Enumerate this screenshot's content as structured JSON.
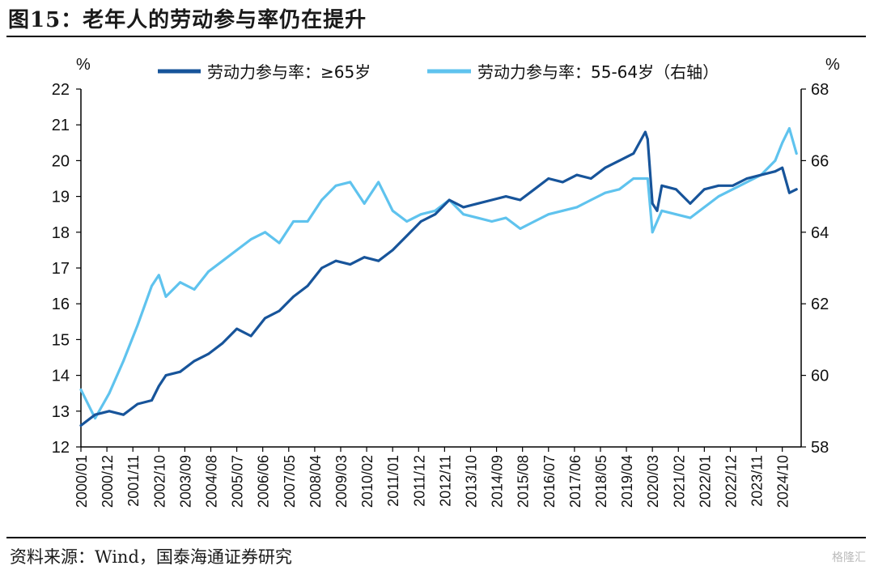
{
  "figure": {
    "title": "图15：老年人的劳动参与率仍在提升",
    "source": "资料来源：Wind，国泰海通证券研究",
    "watermark": "格隆汇"
  },
  "colors": {
    "series_65plus": "#17549a",
    "series_55_64": "#5fc3ee",
    "axis": "#000000"
  },
  "chart_data": {
    "type": "line",
    "title": "",
    "left_axis": {
      "unit": "%",
      "ylim": [
        12,
        22
      ],
      "ticks": [
        "12",
        "13",
        "14",
        "15",
        "16",
        "17",
        "18",
        "19",
        "20",
        "21",
        "22"
      ]
    },
    "right_axis": {
      "unit": "%",
      "ylim": [
        58,
        68
      ],
      "ticks": [
        "58",
        "60",
        "62",
        "64",
        "66",
        "68"
      ]
    },
    "x_ticks": [
      "2000/01",
      "2000/12",
      "2001/11",
      "2002/10",
      "2003/09",
      "2004/08",
      "2005/07",
      "2006/06",
      "2007/05",
      "2008/04",
      "2009/03",
      "2010/02",
      "2011/01",
      "2011/12",
      "2012/11",
      "2013/10",
      "2014/09",
      "2015/08",
      "2016/07",
      "2017/06",
      "2018/05",
      "2019/04",
      "2020/03",
      "2021/02",
      "2022/01",
      "2022/12",
      "2023/11",
      "2024/10"
    ],
    "grid": false,
    "legend_position": "top",
    "series": [
      {
        "name": "劳动力参与率：≥65岁",
        "axis": "left",
        "x": [
          "2000-01",
          "2000-07",
          "2001-01",
          "2001-07",
          "2002-01",
          "2002-07",
          "2002-10",
          "2003-01",
          "2003-07",
          "2004-01",
          "2004-07",
          "2005-01",
          "2005-07",
          "2006-01",
          "2006-07",
          "2007-01",
          "2007-07",
          "2008-01",
          "2008-07",
          "2009-01",
          "2009-07",
          "2010-01",
          "2010-07",
          "2011-01",
          "2011-07",
          "2012-01",
          "2012-07",
          "2013-01",
          "2013-07",
          "2014-01",
          "2014-07",
          "2015-01",
          "2015-07",
          "2016-01",
          "2016-07",
          "2017-01",
          "2017-07",
          "2018-01",
          "2018-07",
          "2019-01",
          "2019-07",
          "2019-12",
          "2020-01",
          "2020-03",
          "2020-05",
          "2020-07",
          "2021-01",
          "2021-07",
          "2022-01",
          "2022-07",
          "2023-01",
          "2023-07",
          "2024-01",
          "2024-07",
          "2024-10",
          "2025-01",
          "2025-04"
        ],
        "values": [
          12.6,
          12.9,
          13.0,
          12.9,
          13.2,
          13.3,
          13.7,
          14.0,
          14.1,
          14.4,
          14.6,
          14.9,
          15.3,
          15.1,
          15.6,
          15.8,
          16.2,
          16.5,
          17.0,
          17.2,
          17.1,
          17.3,
          17.2,
          17.5,
          17.9,
          18.3,
          18.5,
          18.9,
          18.7,
          18.8,
          18.9,
          19.0,
          18.9,
          19.2,
          19.5,
          19.4,
          19.6,
          19.5,
          19.8,
          20.0,
          20.2,
          20.8,
          20.6,
          18.8,
          18.6,
          19.3,
          19.2,
          18.8,
          19.2,
          19.3,
          19.3,
          19.5,
          19.6,
          19.7,
          19.8,
          19.1,
          19.2
        ]
      },
      {
        "name": "劳动力参与率：55-64岁（右轴）",
        "axis": "right",
        "x": [
          "2000-01",
          "2000-07",
          "2001-01",
          "2001-07",
          "2002-01",
          "2002-07",
          "2002-10",
          "2003-01",
          "2003-07",
          "2004-01",
          "2004-07",
          "2005-01",
          "2005-07",
          "2006-01",
          "2006-07",
          "2007-01",
          "2007-07",
          "2008-01",
          "2008-07",
          "2009-01",
          "2009-07",
          "2010-01",
          "2010-07",
          "2011-01",
          "2011-07",
          "2012-01",
          "2012-07",
          "2013-01",
          "2013-07",
          "2014-01",
          "2014-07",
          "2015-01",
          "2015-07",
          "2016-01",
          "2016-07",
          "2017-01",
          "2017-07",
          "2018-01",
          "2018-07",
          "2019-01",
          "2019-07",
          "2020-01",
          "2020-03",
          "2020-05",
          "2020-07",
          "2021-01",
          "2021-07",
          "2022-01",
          "2022-07",
          "2023-01",
          "2023-07",
          "2024-01",
          "2024-07",
          "2024-10",
          "2025-01",
          "2025-04"
        ],
        "values": [
          59.6,
          58.8,
          59.5,
          60.4,
          61.4,
          62.5,
          62.8,
          62.2,
          62.6,
          62.4,
          62.9,
          63.2,
          63.5,
          63.8,
          64.0,
          63.7,
          64.3,
          64.3,
          64.9,
          65.3,
          65.4,
          64.8,
          65.4,
          64.6,
          64.3,
          64.5,
          64.6,
          64.9,
          64.5,
          64.4,
          64.3,
          64.4,
          64.1,
          64.3,
          64.5,
          64.6,
          64.7,
          64.9,
          65.1,
          65.2,
          65.5,
          65.5,
          64.0,
          64.3,
          64.6,
          64.5,
          64.4,
          64.7,
          65.0,
          65.2,
          65.4,
          65.6,
          66.0,
          66.5,
          66.9,
          66.2
        ]
      }
    ]
  },
  "legend": {
    "item1": "劳动力参与率：≥65岁",
    "item2": "劳动力参与率：55-64岁（右轴）"
  }
}
